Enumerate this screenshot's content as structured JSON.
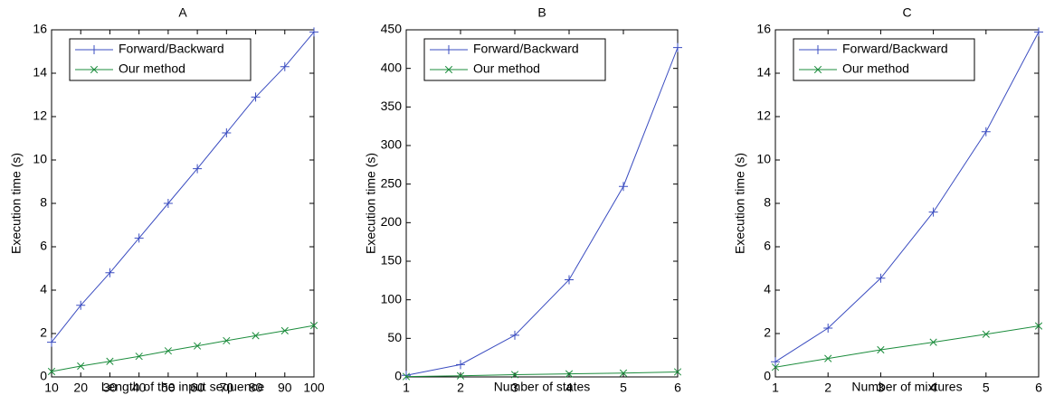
{
  "chart_data": [
    {
      "type": "line",
      "title": "A",
      "xlabel": "Length of the input sequence",
      "ylabel": "Execution time (s)",
      "x": [
        10,
        20,
        30,
        40,
        50,
        60,
        70,
        80,
        90,
        100
      ],
      "series": [
        {
          "name": "Forward/Backward",
          "color": "#3a4cc0",
          "marker": "+",
          "values": [
            1.6,
            3.3,
            4.8,
            6.4,
            8.0,
            9.6,
            11.25,
            12.9,
            14.3,
            15.9
          ]
        },
        {
          "name": "Our method",
          "color": "#1b8c3c",
          "marker": "x",
          "values": [
            0.25,
            0.5,
            0.72,
            0.95,
            1.2,
            1.43,
            1.67,
            1.9,
            2.13,
            2.37
          ]
        }
      ],
      "xlim": [
        10,
        100
      ],
      "xticks": [
        10,
        20,
        30,
        40,
        50,
        60,
        70,
        80,
        90,
        100
      ],
      "ylim": [
        0,
        16
      ],
      "yticks": [
        0,
        2,
        4,
        6,
        8,
        10,
        12,
        14,
        16
      ],
      "legend": "upper left"
    },
    {
      "type": "line",
      "title": "B",
      "xlabel": "Number of states",
      "ylabel": "Execution time (s)",
      "x": [
        1,
        2,
        3,
        4,
        5,
        6
      ],
      "series": [
        {
          "name": "Forward/Backward",
          "color": "#3a4cc0",
          "marker": "+",
          "values": [
            2,
            16,
            54,
            126,
            247,
            427
          ]
        },
        {
          "name": "Our method",
          "color": "#1b8c3c",
          "marker": "x",
          "values": [
            0.5,
            1.5,
            3,
            4,
            5,
            6.5
          ]
        }
      ],
      "xlim": [
        1,
        6
      ],
      "xticks": [
        1,
        2,
        3,
        4,
        5,
        6
      ],
      "ylim": [
        0,
        450
      ],
      "yticks": [
        0,
        50,
        100,
        150,
        200,
        250,
        300,
        350,
        400,
        450
      ],
      "legend": "upper left"
    },
    {
      "type": "line",
      "title": "C",
      "xlabel": "Number of mixtures",
      "ylabel": "Execution time (s)",
      "x": [
        1,
        2,
        3,
        4,
        5,
        6
      ],
      "series": [
        {
          "name": "Forward/Backward",
          "color": "#3a4cc0",
          "marker": "+",
          "values": [
            0.7,
            2.25,
            4.55,
            7.6,
            11.3,
            15.9
          ]
        },
        {
          "name": "Our method",
          "color": "#1b8c3c",
          "marker": "x",
          "values": [
            0.45,
            0.85,
            1.25,
            1.6,
            1.97,
            2.35
          ]
        }
      ],
      "xlim": [
        1,
        6
      ],
      "xticks": [
        1,
        2,
        3,
        4,
        5,
        6
      ],
      "ylim": [
        0,
        16
      ],
      "yticks": [
        0,
        2,
        4,
        6,
        8,
        10,
        12,
        14,
        16
      ],
      "legend": "upper left"
    }
  ]
}
